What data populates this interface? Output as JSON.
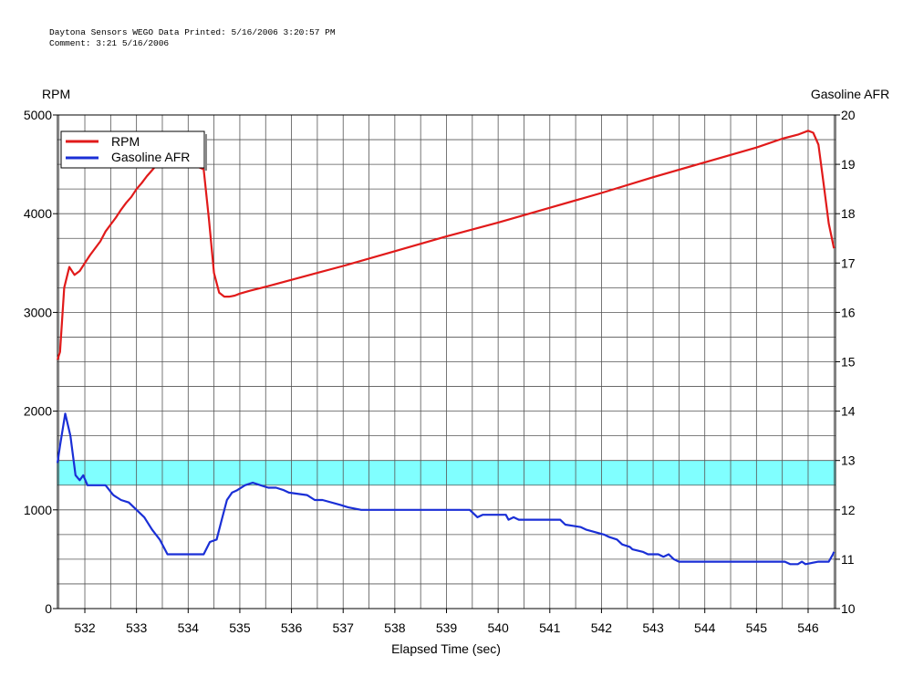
{
  "header": {
    "line1": "Daytona Sensors WEGO Data Printed: 5/16/2006 3:20:57 PM",
    "line2": "Comment: 3:21 5/16/2006"
  },
  "colors": {
    "rpm": "#e11a1a",
    "afr": "#1a2fd6",
    "band": "#80ffff",
    "grid": "#555555"
  },
  "chart_data": {
    "type": "line",
    "xlabel": "Elapsed Time (sec)",
    "ylabel_left": "RPM",
    "ylabel_right": "Gasoline AFR",
    "xlim": [
      531.47,
      546.53
    ],
    "ylim_left": [
      0,
      5000
    ],
    "ylim_right": [
      10,
      20
    ],
    "x_ticks": [
      "532",
      "533",
      "534",
      "535",
      "536",
      "537",
      "538",
      "539",
      "540",
      "541",
      "542",
      "543",
      "544",
      "545",
      "546"
    ],
    "y_ticks_left": [
      "0",
      "1000",
      "2000",
      "3000",
      "4000",
      "5000"
    ],
    "y_ticks_right": [
      "10",
      "11",
      "12",
      "13",
      "14",
      "15",
      "16",
      "17",
      "18",
      "19",
      "20"
    ],
    "grid": true,
    "legend_position": "top-left",
    "band": {
      "axis": "right",
      "from": 12.5,
      "to": 13.0
    },
    "series": [
      {
        "name": "RPM",
        "axis": "left",
        "x": [
          531.47,
          531.52,
          531.6,
          531.7,
          531.8,
          531.9,
          532.0,
          532.1,
          532.2,
          532.3,
          532.4,
          532.5,
          532.6,
          532.7,
          532.8,
          532.9,
          533.0,
          533.1,
          533.2,
          533.3,
          533.4,
          533.5,
          533.6,
          534.3,
          534.4,
          534.5,
          534.6,
          534.7,
          534.8,
          534.9,
          535.0,
          535.2,
          535.5,
          536.0,
          536.5,
          537.0,
          538.0,
          539.0,
          540.0,
          541.0,
          542.0,
          543.0,
          544.0,
          545.0,
          545.5,
          545.8,
          546.0,
          546.1,
          546.2,
          546.3,
          546.4,
          546.5
        ],
        "values": [
          2520,
          2600,
          3250,
          3460,
          3380,
          3420,
          3500,
          3580,
          3650,
          3720,
          3820,
          3890,
          3960,
          4040,
          4110,
          4170,
          4250,
          4310,
          4380,
          4440,
          4500,
          4550,
          4600,
          4450,
          3950,
          3400,
          3200,
          3160,
          3160,
          3170,
          3190,
          3220,
          3260,
          3330,
          3400,
          3470,
          3620,
          3770,
          3910,
          4060,
          4210,
          4370,
          4520,
          4670,
          4760,
          4800,
          4840,
          4820,
          4700,
          4300,
          3900,
          3650
        ]
      },
      {
        "name": "Gasoline AFR",
        "axis": "right",
        "x": [
          531.47,
          531.52,
          531.62,
          531.72,
          531.82,
          531.9,
          531.97,
          532.05,
          532.4,
          532.55,
          532.7,
          532.85,
          533.0,
          533.15,
          533.3,
          533.45,
          533.6,
          533.7,
          534.3,
          534.42,
          534.55,
          534.65,
          534.75,
          534.85,
          534.95,
          535.1,
          535.25,
          535.4,
          535.55,
          535.7,
          535.85,
          535.95,
          536.3,
          536.45,
          536.6,
          536.95,
          537.1,
          537.35,
          539.45,
          539.6,
          539.7,
          540.15,
          540.2,
          540.3,
          540.4,
          541.2,
          541.3,
          541.6,
          541.7,
          542.05,
          542.15,
          542.3,
          542.4,
          542.55,
          542.6,
          542.8,
          542.9,
          543.1,
          543.2,
          543.3,
          543.4,
          543.5,
          545.55,
          545.65,
          545.8,
          545.88,
          545.95,
          546.2,
          546.4,
          546.48,
          546.5
        ],
        "values": [
          12.95,
          13.3,
          13.95,
          13.5,
          12.7,
          12.6,
          12.7,
          12.5,
          12.5,
          12.3,
          12.2,
          12.15,
          12.0,
          11.85,
          11.6,
          11.4,
          11.1,
          11.1,
          11.1,
          11.35,
          11.4,
          11.8,
          12.2,
          12.35,
          12.4,
          12.5,
          12.55,
          12.5,
          12.45,
          12.45,
          12.4,
          12.35,
          12.3,
          12.2,
          12.2,
          12.1,
          12.05,
          12.0,
          12.0,
          11.85,
          11.9,
          11.9,
          11.8,
          11.85,
          11.8,
          11.8,
          11.7,
          11.65,
          11.6,
          11.5,
          11.45,
          11.4,
          11.3,
          11.25,
          11.2,
          11.15,
          11.1,
          11.1,
          11.05,
          11.1,
          11.0,
          10.95,
          10.95,
          10.9,
          10.9,
          10.95,
          10.9,
          10.95,
          10.95,
          11.1,
          11.15
        ]
      }
    ]
  }
}
